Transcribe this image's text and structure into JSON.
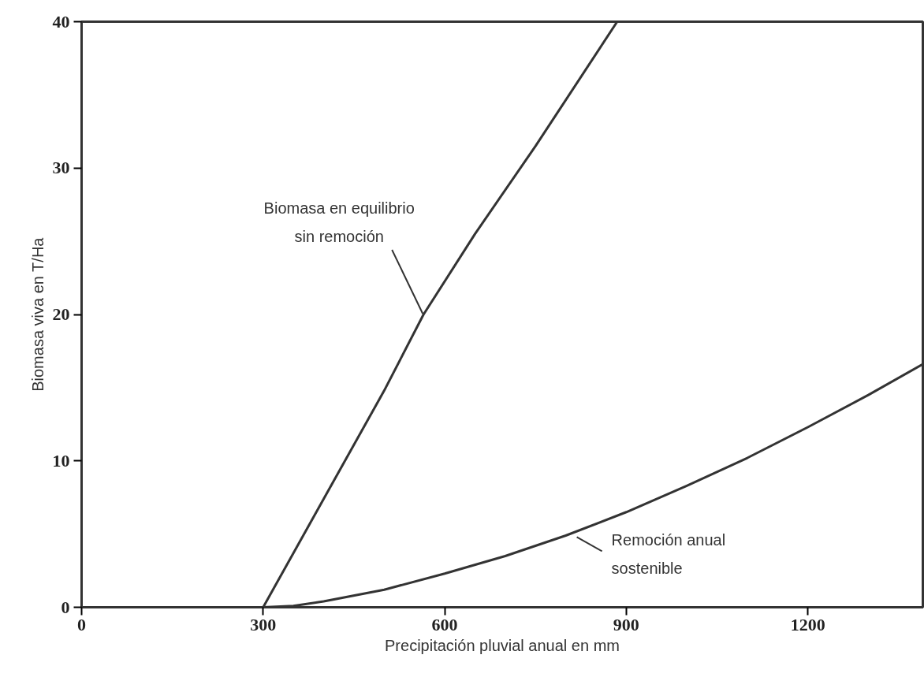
{
  "chart_data": {
    "type": "line",
    "xlabel": "Precipitación pluvial anual en mm",
    "ylabel": "Biomasa viva en T/Ha",
    "xlim": [
      0,
      1390
    ],
    "ylim": [
      0,
      40
    ],
    "xticks": [
      0,
      300,
      600,
      900,
      1200
    ],
    "yticks": [
      0,
      10,
      20,
      30,
      40
    ],
    "grid": false,
    "marker": "none",
    "line_style": "solid",
    "annotations": [
      {
        "text": "Biomasa en equilibrio sin remoción",
        "x": 565,
        "y": 20
      },
      {
        "text": "Remoción anual sostenible",
        "x": 800,
        "y": 4.9
      }
    ],
    "series": [
      {
        "color": "#333333",
        "x": [
          300,
          400,
          500,
          565,
          650,
          750,
          885
        ],
        "values": [
          0,
          7.4,
          14.8,
          20,
          25.5,
          31.5,
          40
        ]
      },
      {
        "color": "#333333",
        "x": [
          300,
          350,
          400,
          500,
          600,
          700,
          800,
          900,
          1000,
          1100,
          1200,
          1300,
          1390
        ],
        "values": [
          0,
          0.1,
          0.4,
          1.2,
          2.3,
          3.5,
          4.9,
          6.5,
          8.3,
          10.2,
          12.3,
          14.5,
          16.6
        ]
      }
    ]
  }
}
